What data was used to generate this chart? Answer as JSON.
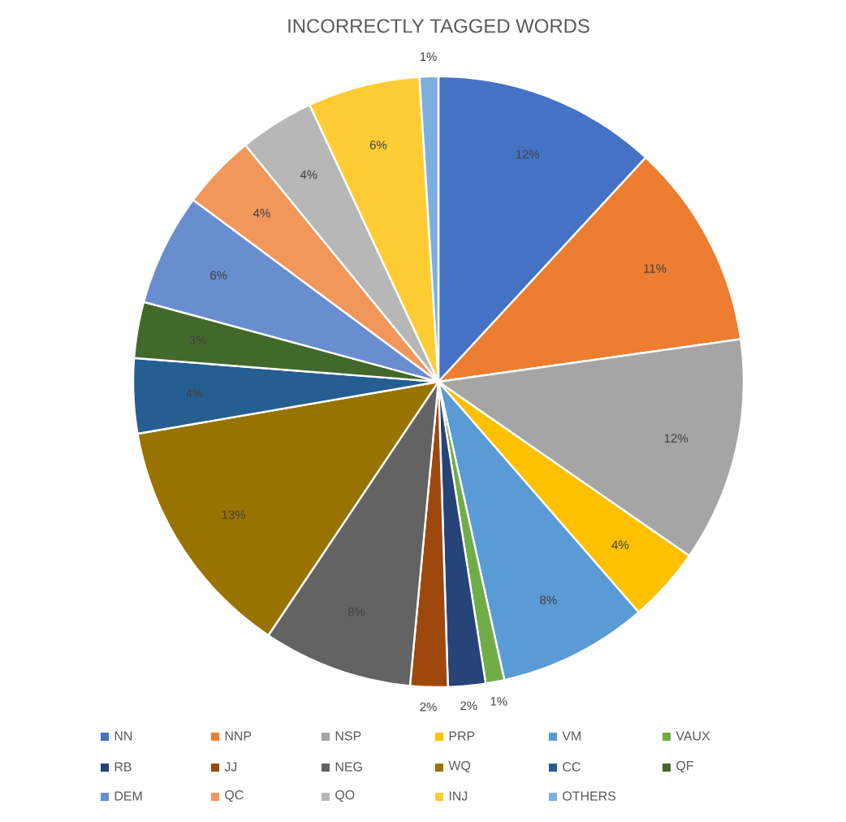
{
  "chart_data": {
    "type": "pie",
    "title": "INCORRECTLY TAGGED WORDS",
    "categories": [
      "NN",
      "NNP",
      "NSP",
      "PRP",
      "VM",
      "VAUX",
      "RB",
      "JJ",
      "NEG",
      "WQ",
      "CC",
      "QF",
      "DEM",
      "QC",
      "QO",
      "INJ",
      "OTHERS"
    ],
    "values": [
      12,
      11,
      12,
      4,
      8,
      1,
      2,
      2,
      8,
      13,
      4,
      3,
      6,
      4,
      4,
      6,
      1
    ],
    "colors": [
      "#4472c4",
      "#ed7d31",
      "#a5a5a5",
      "#ffc000",
      "#5b9bd5",
      "#70ad47",
      "#264478",
      "#9e480e",
      "#636363",
      "#997300",
      "#255e91",
      "#43682b",
      "#698ed0",
      "#f1975a",
      "#b7b7b7",
      "#ffcd33",
      "#7cafdd"
    ],
    "value_labels": [
      "12%",
      "11%",
      "12%",
      "4%",
      "8%",
      "1%",
      "2%",
      "2%",
      "8%",
      "13%",
      "4%",
      "3%",
      "6%",
      "4%",
      "4%",
      "6%",
      "1%"
    ],
    "legend": "bottom"
  }
}
